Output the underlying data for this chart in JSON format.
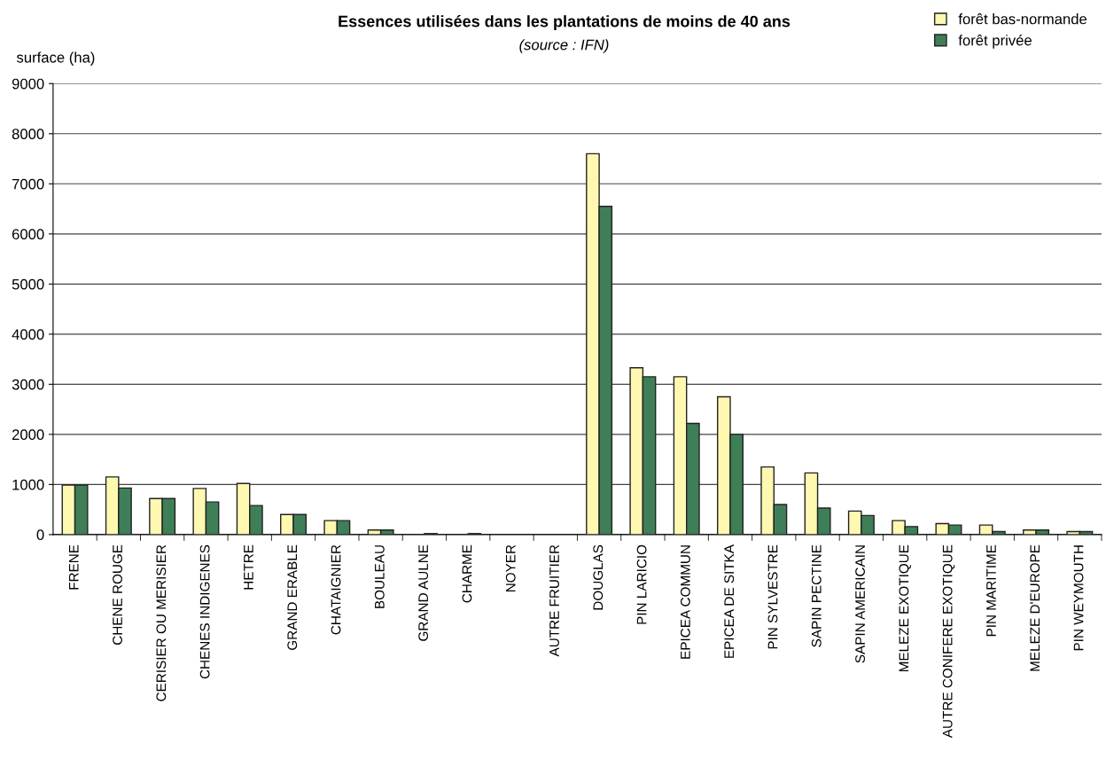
{
  "chart_data": {
    "type": "bar",
    "title": "Essences utilisées dans les plantations de moins de 40 ans",
    "subtitle": "(source : IFN)",
    "ylabel": "surface (ha)",
    "categories": [
      "FRENE",
      "CHENE ROUGE",
      "CERISIER OU MERISIER",
      "CHENES INDIGENES",
      "HETRE",
      "GRAND ERABLE",
      "CHATAIGNIER",
      "BOULEAU",
      "GRAND AULNE",
      "CHARME",
      "NOYER",
      "AUTRE FRUITIER",
      "DOUGLAS",
      "PIN LARICIO",
      "EPICEA COMMUN",
      "EPICEA DE SITKA",
      "PIN SYLVESTRE",
      "SAPIN PECTINE",
      "SAPIN AMERICAIN",
      "MELEZE EXOTIQUE",
      "AUTRE CONIFERE EXOTIQUE",
      "PIN MARITIME",
      "MELEZE D'EUROPE",
      "PIN WEYMOUTH"
    ],
    "series": [
      {
        "name": "forêt bas-normande",
        "color": "#fff8b0",
        "values": [
          990,
          1150,
          720,
          920,
          1020,
          400,
          280,
          90,
          null,
          null,
          null,
          null,
          7600,
          3330,
          3150,
          2750,
          1350,
          1230,
          470,
          280,
          220,
          190,
          90,
          60
        ]
      },
      {
        "name": "forêt privée",
        "color": "#3f7f57",
        "values": [
          990,
          930,
          720,
          650,
          580,
          400,
          280,
          90,
          20,
          20,
          null,
          null,
          6550,
          3150,
          2220,
          2000,
          600,
          530,
          380,
          160,
          190,
          60,
          90,
          60
        ]
      }
    ],
    "ylim": [
      0,
      9000
    ],
    "yticks": [
      0,
      1000,
      2000,
      3000,
      4000,
      5000,
      6000,
      7000,
      8000,
      9000
    ],
    "grid": "y",
    "legend": "top right"
  }
}
